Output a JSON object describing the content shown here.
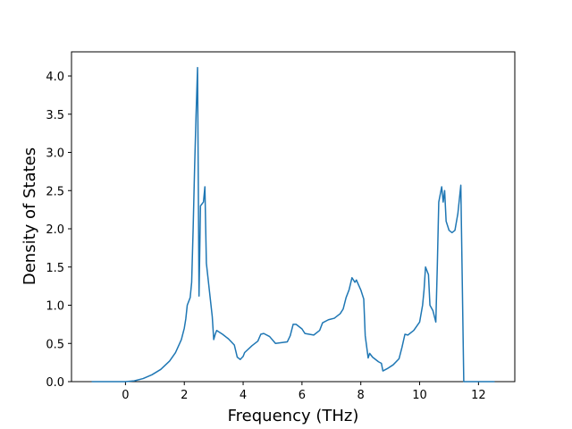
{
  "chart_data": {
    "type": "line",
    "xlabel": "Frequency (THz)",
    "ylabel": "Density of States",
    "x": [
      -1.15,
      0,
      0.3,
      0.6,
      0.9,
      1.2,
      1.5,
      1.7,
      1.9,
      2.0,
      2.05,
      2.1,
      2.2,
      2.25,
      2.3,
      2.35,
      2.4,
      2.45,
      2.5,
      2.55,
      2.65,
      2.7,
      2.75,
      2.85,
      2.95,
      3.0,
      3.05,
      3.1,
      3.3,
      3.5,
      3.7,
      3.8,
      3.9,
      4.0,
      4.05,
      4.3,
      4.5,
      4.6,
      4.7,
      4.9,
      5.1,
      5.5,
      5.6,
      5.7,
      5.8,
      6.0,
      6.1,
      6.4,
      6.6,
      6.7,
      6.9,
      7.1,
      7.3,
      7.4,
      7.5,
      7.6,
      7.7,
      7.8,
      7.85,
      8.0,
      8.1,
      8.15,
      8.25,
      8.3,
      8.4,
      8.6,
      8.7,
      8.75,
      8.9,
      9.1,
      9.3,
      9.4,
      9.5,
      9.6,
      9.8,
      10.0,
      10.1,
      10.15,
      10.2,
      10.3,
      10.35,
      10.45,
      10.55,
      10.6,
      10.65,
      10.75,
      10.8,
      10.85,
      10.9,
      11.0,
      11.1,
      11.2,
      11.3,
      11.4,
      11.5,
      12.55
    ],
    "series": [
      {
        "color": "#1f77b4",
        "values": [
          0,
          0,
          0.01,
          0.04,
          0.09,
          0.16,
          0.27,
          0.38,
          0.55,
          0.7,
          0.82,
          1.0,
          1.1,
          1.3,
          2.0,
          2.8,
          3.5,
          4.11,
          1.12,
          2.3,
          2.35,
          2.55,
          1.55,
          1.2,
          0.85,
          0.55,
          0.62,
          0.67,
          0.62,
          0.56,
          0.48,
          0.32,
          0.29,
          0.33,
          0.38,
          0.47,
          0.53,
          0.62,
          0.63,
          0.59,
          0.5,
          0.52,
          0.6,
          0.75,
          0.75,
          0.69,
          0.63,
          0.61,
          0.67,
          0.77,
          0.81,
          0.83,
          0.89,
          0.95,
          1.1,
          1.2,
          1.36,
          1.3,
          1.33,
          1.2,
          1.08,
          0.6,
          0.31,
          0.37,
          0.32,
          0.26,
          0.24,
          0.14,
          0.17,
          0.22,
          0.3,
          0.45,
          0.62,
          0.61,
          0.67,
          0.78,
          1.0,
          1.2,
          1.5,
          1.4,
          1.0,
          0.93,
          0.78,
          1.5,
          2.35,
          2.55,
          2.35,
          2.5,
          2.1,
          1.98,
          1.95,
          1.98,
          2.2,
          2.57,
          0,
          0
        ]
      }
    ],
    "xlim": [
      -1.835,
      13.235
    ],
    "xticks": [
      0,
      2,
      4,
      6,
      8,
      10,
      12
    ],
    "ylim": [
      0,
      4.316
    ],
    "yticks": [
      {
        "value": 0,
        "label": "0.0"
      },
      0.5,
      {
        "value": 1,
        "label": "1.0"
      },
      1.5,
      {
        "value": 2,
        "label": "2.0"
      },
      2.5,
      {
        "value": 3,
        "label": "3.0"
      },
      3.5,
      {
        "value": 4,
        "label": "4.0"
      }
    ]
  }
}
